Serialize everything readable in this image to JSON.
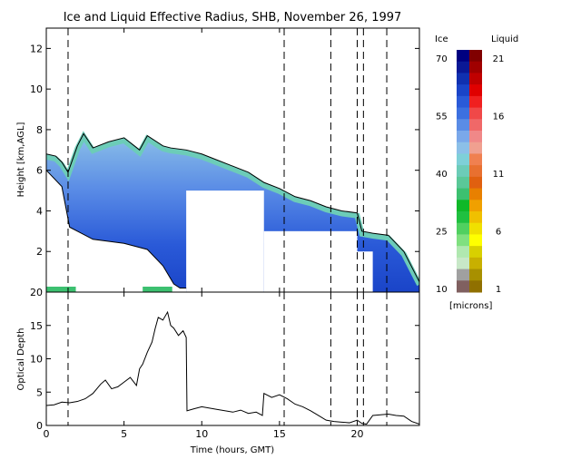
{
  "chart_data": [
    {
      "type": "heatmap",
      "title": "Ice and Liquid Effective Radius, SHB, November 26, 1997",
      "xlabel": "",
      "ylabel": "Height [km,AGL]",
      "xlim": [
        0,
        24
      ],
      "ylim": [
        0,
        13
      ],
      "x_ticks": [
        0,
        5,
        10,
        15,
        20
      ],
      "y_ticks": [
        2,
        4,
        6,
        8,
        10,
        12
      ],
      "x_tick_labels": [
        "0",
        "5",
        "10",
        "15",
        "20"
      ],
      "y_tick_labels": [
        "2",
        "4",
        "6",
        "8",
        "10",
        "12"
      ],
      "vertical_dashed_lines_hours": [
        1.4,
        15.3,
        18.3,
        20.0,
        20.4,
        21.9
      ],
      "cloud_top_km": [
        {
          "x": 0.0,
          "y": 6.8
        },
        {
          "x": 0.6,
          "y": 6.7
        },
        {
          "x": 1.0,
          "y": 6.4
        },
        {
          "x": 1.4,
          "y": 5.9
        },
        {
          "x": 2.0,
          "y": 7.2
        },
        {
          "x": 2.4,
          "y": 7.8
        },
        {
          "x": 3.0,
          "y": 7.1
        },
        {
          "x": 4.0,
          "y": 7.4
        },
        {
          "x": 5.0,
          "y": 7.6
        },
        {
          "x": 6.0,
          "y": 7.0
        },
        {
          "x": 6.5,
          "y": 7.7
        },
        {
          "x": 7.5,
          "y": 7.2
        },
        {
          "x": 8.0,
          "y": 7.1
        },
        {
          "x": 9.0,
          "y": 7.0
        },
        {
          "x": 10.0,
          "y": 6.8
        },
        {
          "x": 11.0,
          "y": 6.5
        },
        {
          "x": 12.0,
          "y": 6.2
        },
        {
          "x": 13.0,
          "y": 5.9
        },
        {
          "x": 14.0,
          "y": 5.4
        },
        {
          "x": 15.0,
          "y": 5.1
        },
        {
          "x": 16.0,
          "y": 4.7
        },
        {
          "x": 17.0,
          "y": 4.5
        },
        {
          "x": 18.0,
          "y": 4.2
        },
        {
          "x": 19.0,
          "y": 4.0
        },
        {
          "x": 20.0,
          "y": 3.9
        },
        {
          "x": 20.3,
          "y": 3.0
        },
        {
          "x": 21.0,
          "y": 2.9
        },
        {
          "x": 22.0,
          "y": 2.8
        },
        {
          "x": 23.0,
          "y": 2.0
        },
        {
          "x": 24.0,
          "y": 0.5
        }
      ],
      "cloud_base_km": [
        {
          "x": 0.0,
          "y": 6.0
        },
        {
          "x": 1.0,
          "y": 5.2
        },
        {
          "x": 1.5,
          "y": 3.2
        },
        {
          "x": 3.0,
          "y": 2.6
        },
        {
          "x": 5.0,
          "y": 2.4
        },
        {
          "x": 6.5,
          "y": 2.1
        },
        {
          "x": 7.5,
          "y": 1.3
        },
        {
          "x": 8.2,
          "y": 0.4
        },
        {
          "x": 8.6,
          "y": 0.2
        },
        {
          "x": 9.0,
          "y": 0.2
        }
      ],
      "missing_data_regions": [
        {
          "x0": 9.0,
          "x1": 14.0,
          "y0": 0.0,
          "y1": 5.0
        },
        {
          "x0": 14.0,
          "x1": 20.0,
          "y0": 0.0,
          "y1": 3.0
        },
        {
          "x0": 20.0,
          "x1": 21.0,
          "y0": 0.0,
          "y1": 2.0
        }
      ],
      "colorbar": {
        "ice_label": "Ice",
        "liquid_label": "Liquid",
        "units": "[microns]",
        "ice_ticks": [
          "70",
          "55",
          "40",
          "25",
          "10"
        ],
        "liquid_ticks": [
          "21",
          "16",
          "11",
          "6",
          "1"
        ],
        "ice_colors": [
          "#000080",
          "#0a1896",
          "#1030b0",
          "#1a44c8",
          "#2a5ad8",
          "#3c70e0",
          "#5a8ce6",
          "#7aa8ea",
          "#8cc0e8",
          "#7ed0d8",
          "#6cccb8",
          "#5ac898",
          "#3cc070",
          "#10b828",
          "#20c040",
          "#50d060",
          "#80e080",
          "#b0e8b0",
          "#c8e8c8",
          "#a0a0a0",
          "#806060"
        ],
        "liquid_colors": [
          "#800000",
          "#a00000",
          "#c00000",
          "#e00000",
          "#f02020",
          "#f04848",
          "#f06868",
          "#f08888",
          "#f0a090",
          "#f08050",
          "#e87030",
          "#e06010",
          "#e88000",
          "#f0a000",
          "#f0c000",
          "#f0e000",
          "#ffff00",
          "#d8d000",
          "#c8b000",
          "#a89000",
          "#907000"
        ]
      }
    },
    {
      "type": "line",
      "title": "",
      "xlabel": "Time (hours, GMT)",
      "ylabel": "Optical Depth",
      "xlim": [
        0,
        24
      ],
      "ylim": [
        0,
        20
      ],
      "x_ticks": [
        0,
        5,
        10,
        15,
        20
      ],
      "y_ticks": [
        0,
        5,
        10,
        15,
        20
      ],
      "x_tick_labels": [
        "0",
        "5",
        "10",
        "15",
        "20"
      ],
      "y_tick_labels": [
        "0",
        "5",
        "10",
        "15",
        "20"
      ],
      "vertical_dashed_lines_hours": [
        1.4,
        15.3,
        18.3,
        20.0,
        20.4,
        21.9
      ],
      "series": [
        {
          "x": [
            0.0,
            0.5,
            1.0,
            1.5,
            2.0,
            2.5,
            3.0,
            3.5,
            3.8,
            4.2,
            4.6,
            5.0,
            5.4,
            5.8,
            6.0,
            6.2,
            6.5,
            6.8,
            7.0,
            7.2,
            7.5,
            7.8,
            8.0,
            8.2,
            8.5,
            8.8,
            9.0,
            9.05,
            9.5,
            10.0,
            11.0,
            12.0,
            12.5,
            13.0,
            13.5,
            13.9,
            14.0,
            14.5,
            15.0,
            15.5,
            16.0,
            16.5,
            17.0,
            17.5,
            18.0,
            18.5,
            19.0,
            19.5,
            20.0,
            20.3,
            20.6,
            21.0,
            21.5,
            22.0,
            22.5,
            23.0,
            23.5,
            24.0
          ],
          "y": [
            3.0,
            3.1,
            3.5,
            3.4,
            3.6,
            4.0,
            4.8,
            6.2,
            6.8,
            5.5,
            5.8,
            6.5,
            7.2,
            6.0,
            8.5,
            9.2,
            11.0,
            12.5,
            14.5,
            16.2,
            15.8,
            17.0,
            15.0,
            14.6,
            13.5,
            14.2,
            13.2,
            2.2,
            2.5,
            2.8,
            2.4,
            2.0,
            2.3,
            1.8,
            2.0,
            1.5,
            4.8,
            4.2,
            4.6,
            4.0,
            3.2,
            2.8,
            2.2,
            1.5,
            0.8,
            0.6,
            0.5,
            0.4,
            0.8,
            0.3,
            0.2,
            1.5,
            1.6,
            1.7,
            1.5,
            1.4,
            0.6,
            0.2
          ]
        }
      ]
    }
  ]
}
